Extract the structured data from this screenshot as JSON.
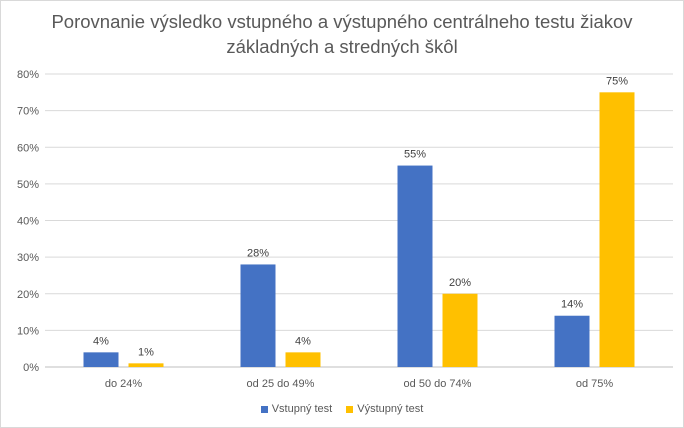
{
  "chart_data": {
    "type": "bar",
    "title_lines": [
      "Porovnanie výsledko vstupného a výstupného centrálneho testu žiakov",
      "základných a stredných škôl"
    ],
    "categories": [
      "do 24%",
      "od 25 do 49%",
      "od 50 do 74%",
      "od 75%"
    ],
    "series": [
      {
        "name": "Vstupný test",
        "color": "#4472c4",
        "values": [
          4,
          28,
          55,
          14
        ],
        "labels": [
          "4%",
          "28%",
          "55%",
          "14%"
        ]
      },
      {
        "name": "Výstupný test",
        "color": "#ffc000",
        "values": [
          1,
          4,
          20,
          75
        ],
        "labels": [
          "1%",
          "4%",
          "20%",
          "75%"
        ]
      }
    ],
    "y_ticks": [
      0,
      10,
      20,
      30,
      40,
      50,
      60,
      70,
      80
    ],
    "y_tick_labels": [
      "0%",
      "10%",
      "20%",
      "30%",
      "40%",
      "50%",
      "60%",
      "70%",
      "80%"
    ],
    "ylim": [
      0,
      80
    ],
    "grid": true,
    "legend_position": "bottom"
  }
}
